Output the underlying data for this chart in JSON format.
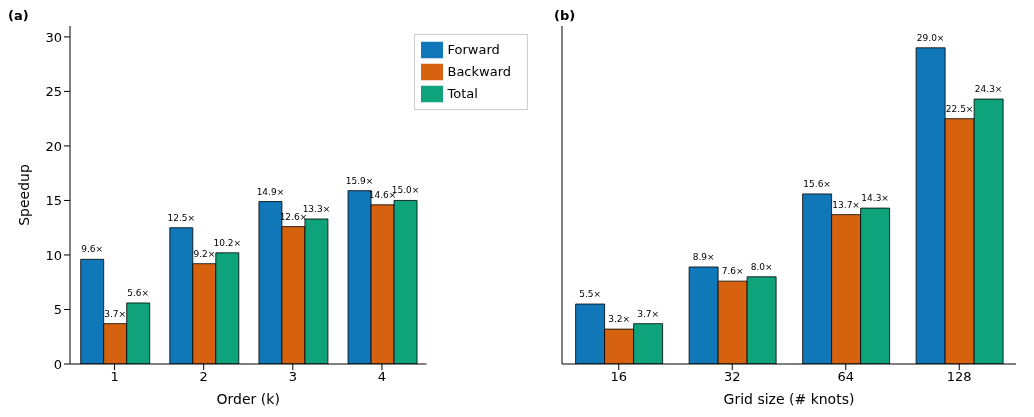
{
  "chart_data": [
    {
      "type": "bar",
      "title": "(a)",
      "xlabel": "Order (k)",
      "ylabel": "Speedup",
      "categories": [
        "1",
        "2",
        "3",
        "4"
      ],
      "series": [
        {
          "name": "Forward",
          "color": "#1077b8",
          "values": [
            9.6,
            12.5,
            14.9,
            15.9
          ],
          "value_labels": [
            "9.6×",
            "12.5×",
            "14.9×",
            "15.9×"
          ]
        },
        {
          "name": "Backward",
          "color": "#d6620f",
          "values": [
            3.7,
            9.2,
            12.6,
            14.6
          ],
          "value_labels": [
            "3.7×",
            "9.2×",
            "12.6×",
            "14.6×"
          ]
        },
        {
          "name": "Total",
          "color": "#0fa37c",
          "values": [
            5.6,
            10.2,
            13.3,
            15.0
          ],
          "value_labels": [
            "5.6×",
            "10.2×",
            "13.3×",
            "15.0×"
          ]
        }
      ],
      "ylim": [
        0,
        31
      ],
      "yticks": [
        0,
        5,
        10,
        15,
        20,
        25,
        30
      ],
      "grid": false,
      "legend": "top right"
    },
    {
      "type": "bar",
      "title": "(b)",
      "xlabel": "Grid size (# knots)",
      "categories": [
        "16",
        "32",
        "64",
        "128"
      ],
      "series": [
        {
          "color": "#1077b8",
          "values": [
            5.5,
            8.9,
            15.6,
            29.0
          ],
          "value_labels": [
            "5.5×",
            "8.9×",
            "15.6×",
            "29.0×"
          ]
        },
        {
          "color": "#d6620f",
          "values": [
            3.2,
            7.6,
            13.7,
            22.5
          ],
          "value_labels": [
            "3.2×",
            "7.6×",
            "13.7×",
            "22.5×"
          ]
        },
        {
          "color": "#0fa37c",
          "values": [
            3.7,
            8.0,
            14.3,
            24.3
          ],
          "value_labels": [
            "3.7×",
            "8.0×",
            "14.3×",
            "24.3×"
          ]
        }
      ],
      "ylim": [
        0,
        31
      ],
      "yticks": [
        0,
        5,
        10,
        15,
        20,
        25,
        30
      ],
      "grid": false,
      "legend": false,
      "tick_labels": "x"
    }
  ]
}
